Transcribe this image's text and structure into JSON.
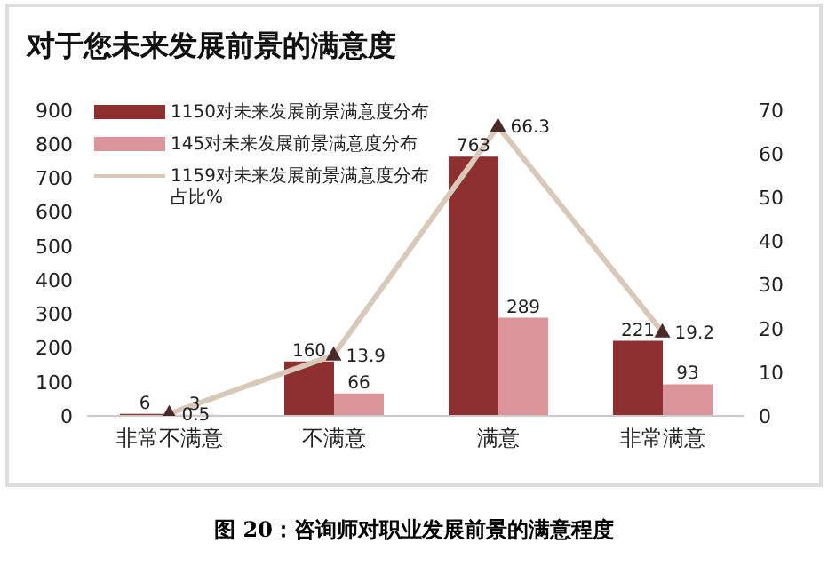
{
  "chart_data": {
    "type": "bar",
    "title": "对于您未来发展前景的满意度",
    "categories": [
      "非常不满意",
      "不满意",
      "满意",
      "非常满意"
    ],
    "series": [
      {
        "name": "1150对未来发展前景满意度分布",
        "color": "#8e2f31",
        "values": [
          6,
          160,
          763,
          221
        ]
      },
      {
        "name": "145对未来发展前景满意度分布",
        "color": "#d9959a",
        "values": [
          3,
          66,
          289,
          93
        ]
      },
      {
        "name": "1159对未来发展前景满意度分布占比%",
        "type": "line",
        "axis": "y2",
        "color": "#d9c9bb",
        "values": [
          0.5,
          13.9,
          66.3,
          19.2
        ]
      }
    ],
    "ylim": [
      0,
      900
    ],
    "yticks": [
      0,
      100,
      200,
      300,
      400,
      500,
      600,
      700,
      800,
      900
    ],
    "y2lim": [
      0,
      70
    ],
    "y2ticks": [
      0,
      10,
      20,
      30,
      40,
      50,
      60,
      70
    ],
    "data_labels": true,
    "legend": "top left",
    "grid": false,
    "marker": "triangle",
    "annotations": [
      "图 20：咨询师对职业发展前景的满意程度"
    ]
  }
}
